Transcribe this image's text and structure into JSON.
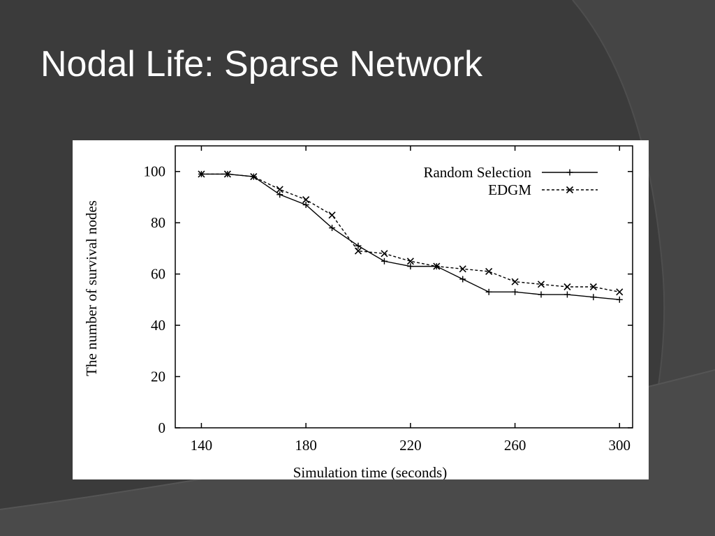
{
  "slide": {
    "title": "Nodal Life: Sparse Network",
    "colors": {
      "background": "#3b3b3b",
      "panel": "#ffffff",
      "title": "#ffffff"
    }
  },
  "chart_data": {
    "type": "line",
    "title": "",
    "xlabel": "Simulation time (seconds)",
    "ylabel": "The number of survival nodes",
    "xlim": [
      130,
      305
    ],
    "ylim": [
      0,
      110
    ],
    "xticks": [
      140,
      180,
      220,
      260,
      300
    ],
    "yticks": [
      0,
      20,
      40,
      60,
      80,
      100
    ],
    "legend_position": "top-right",
    "grid": false,
    "series": [
      {
        "name": "Random Selection",
        "marker": "plus",
        "dash": "solid",
        "x": [
          140,
          150,
          160,
          170,
          180,
          190,
          200,
          210,
          220,
          230,
          240,
          250,
          260,
          270,
          280,
          290,
          300
        ],
        "y": [
          99,
          99,
          98,
          91,
          87,
          78,
          71,
          65,
          63,
          63,
          58,
          53,
          53,
          52,
          52,
          51,
          50
        ]
      },
      {
        "name": "EDGM",
        "marker": "cross",
        "dash": "dashed",
        "x": [
          140,
          150,
          160,
          170,
          180,
          190,
          200,
          210,
          220,
          230,
          240,
          250,
          260,
          270,
          280,
          290,
          300
        ],
        "y": [
          99,
          99,
          98,
          93,
          89,
          83,
          69,
          68,
          65,
          63,
          62,
          61,
          57,
          56,
          55,
          55,
          53
        ]
      }
    ]
  }
}
